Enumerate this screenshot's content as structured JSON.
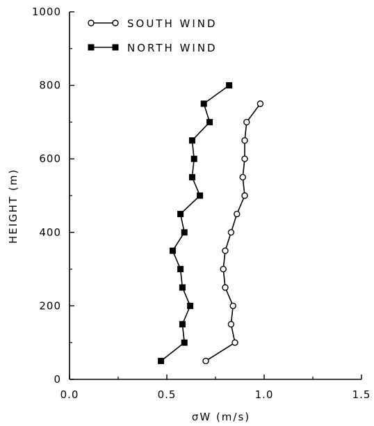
{
  "chart_data": {
    "type": "line",
    "xlabel": "σW (m/s)",
    "ylabel": "HEIGHT (m)",
    "xlim": [
      0.0,
      1.5
    ],
    "ylim": [
      0,
      1000
    ],
    "xticks": [
      0.0,
      0.5,
      1.0,
      1.5
    ],
    "xtick_labels": [
      "0.0",
      "0.5",
      "1.0",
      "1.5"
    ],
    "yticks": [
      0,
      200,
      400,
      600,
      800,
      1000
    ],
    "ytick_labels": [
      "0",
      "200",
      "400",
      "600",
      "800",
      "1000"
    ],
    "grid": false,
    "legend_position": "top-left",
    "series": [
      {
        "name": "SOUTH WIND",
        "marker": "open-circle",
        "color": "#000000",
        "points": [
          {
            "x": 0.7,
            "y": 50
          },
          {
            "x": 0.85,
            "y": 100
          },
          {
            "x": 0.83,
            "y": 150
          },
          {
            "x": 0.84,
            "y": 200
          },
          {
            "x": 0.8,
            "y": 250
          },
          {
            "x": 0.79,
            "y": 300
          },
          {
            "x": 0.8,
            "y": 350
          },
          {
            "x": 0.83,
            "y": 400
          },
          {
            "x": 0.86,
            "y": 450
          },
          {
            "x": 0.9,
            "y": 500
          },
          {
            "x": 0.89,
            "y": 550
          },
          {
            "x": 0.9,
            "y": 600
          },
          {
            "x": 0.9,
            "y": 650
          },
          {
            "x": 0.91,
            "y": 700
          },
          {
            "x": 0.98,
            "y": 750
          }
        ]
      },
      {
        "name": "NORTH WIND",
        "marker": "filled-square",
        "color": "#000000",
        "points": [
          {
            "x": 0.47,
            "y": 50
          },
          {
            "x": 0.59,
            "y": 100
          },
          {
            "x": 0.58,
            "y": 150
          },
          {
            "x": 0.62,
            "y": 200
          },
          {
            "x": 0.58,
            "y": 250
          },
          {
            "x": 0.57,
            "y": 300
          },
          {
            "x": 0.53,
            "y": 350
          },
          {
            "x": 0.59,
            "y": 400
          },
          {
            "x": 0.57,
            "y": 450
          },
          {
            "x": 0.67,
            "y": 500
          },
          {
            "x": 0.63,
            "y": 550
          },
          {
            "x": 0.64,
            "y": 600
          },
          {
            "x": 0.63,
            "y": 650
          },
          {
            "x": 0.72,
            "y": 700
          },
          {
            "x": 0.69,
            "y": 750
          },
          {
            "x": 0.82,
            "y": 800
          }
        ]
      }
    ]
  }
}
